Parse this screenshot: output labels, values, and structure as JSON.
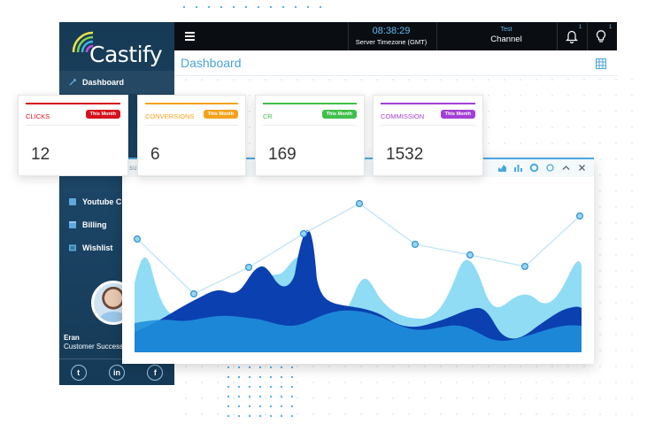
{
  "app": {
    "name": "Castify"
  },
  "topbar": {
    "time": "08:38:29",
    "timezone_label": "Server Timezone (GMT)",
    "channel_small": "Test",
    "channel_label": "Channel",
    "bell_count": "1",
    "bulb_count": "1"
  },
  "page": {
    "title": "Dashboard"
  },
  "sidebar": {
    "items": [
      {
        "label": "Dashboard",
        "icon": "rocket-icon"
      },
      {
        "label": "Youtube Cha",
        "icon": "youtube-icon"
      },
      {
        "label": "Billing",
        "icon": "billing-icon"
      },
      {
        "label": "Wishlist",
        "icon": "wishlist-icon"
      }
    ],
    "user": {
      "name": "Eran",
      "role": "Customer Success"
    },
    "social": [
      "twitter-icon",
      "linkedin-icon",
      "facebook-icon"
    ]
  },
  "cards": [
    {
      "name": "CLICKS",
      "badge": "This Month",
      "value": "12",
      "color": "#d6101c"
    },
    {
      "name": "CONVERSIONS",
      "badge": "This Month",
      "value": "6",
      "color": "#f4a21e"
    },
    {
      "name": "CR",
      "badge": "This Month",
      "value": "169",
      "color": "#3fbf4a"
    },
    {
      "name": "COMMISSION",
      "badge": "This Month",
      "value": "1532",
      "color": "#a23fd4"
    }
  ],
  "chart_panel": {
    "header_partial": "su"
  },
  "colors": {
    "accent": "#4aa8e0",
    "sidebar": "#1a4261",
    "topbar": "#0a0e13"
  }
}
